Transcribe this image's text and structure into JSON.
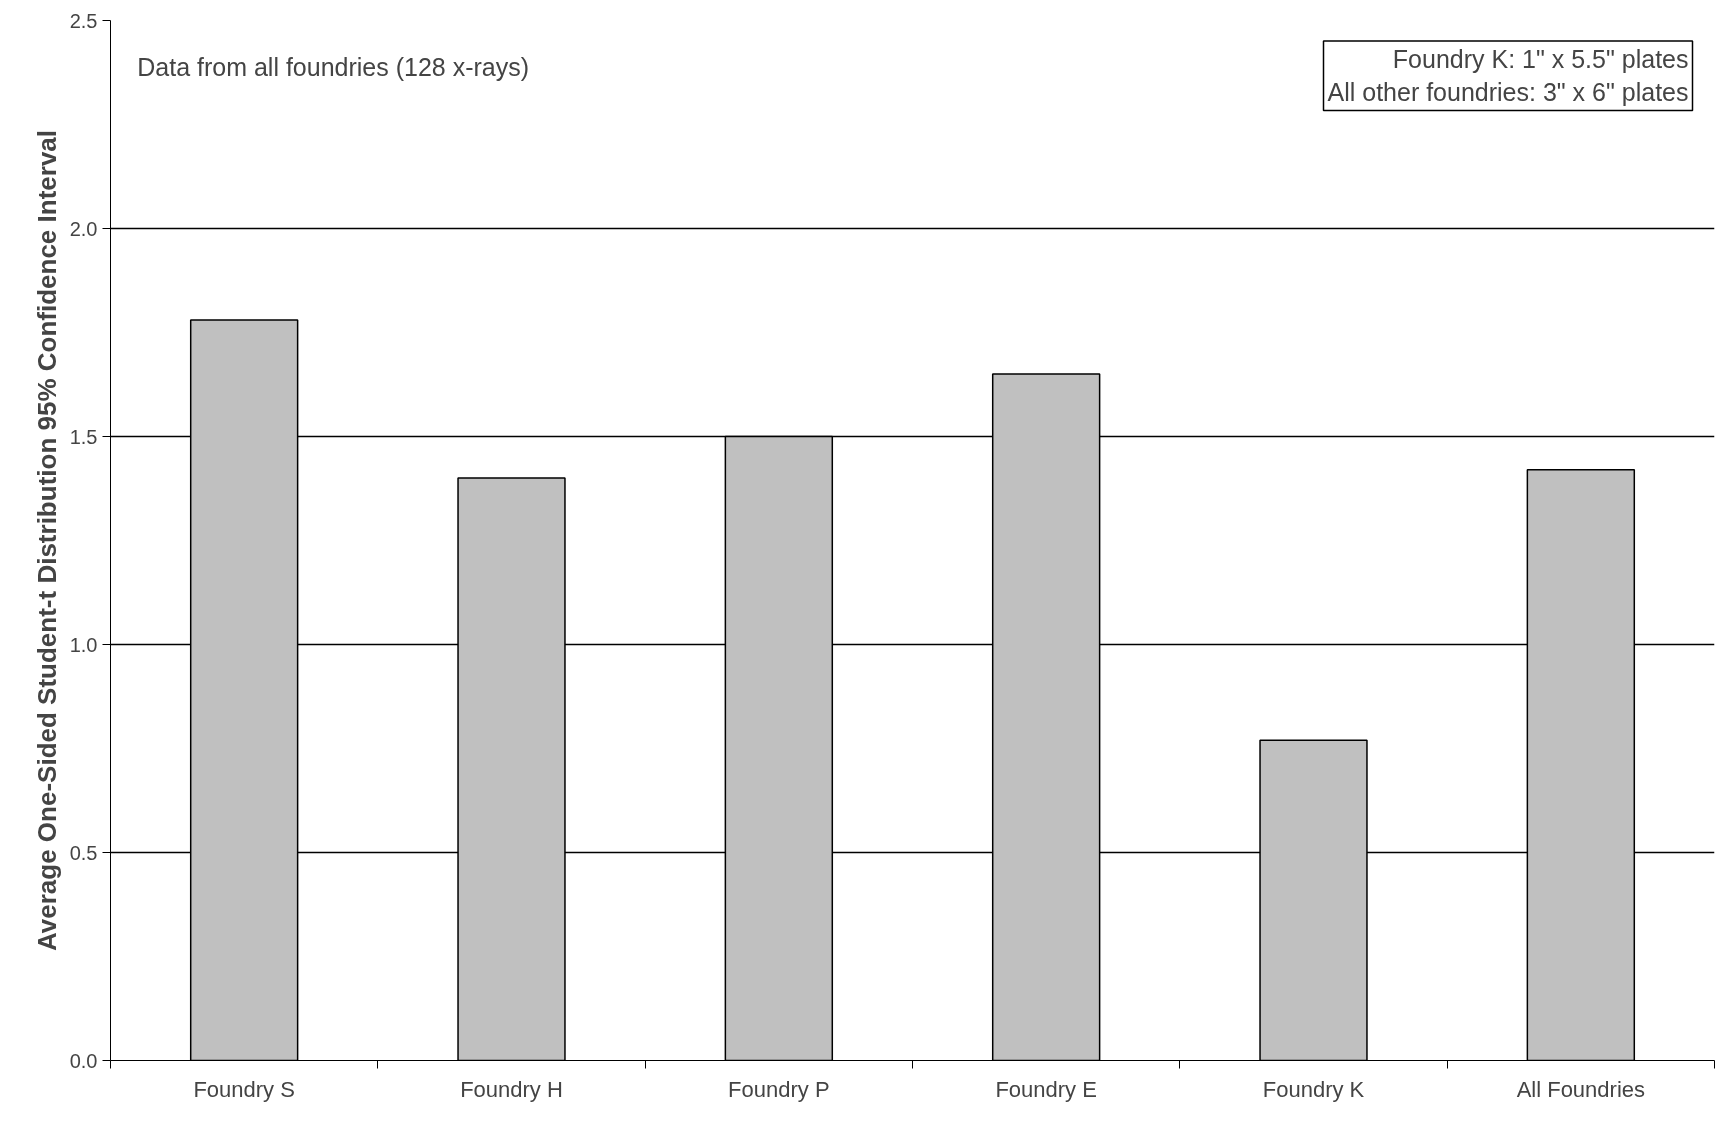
{
  "chart_data": {
    "type": "bar",
    "ylabel": "Average One-Sided Student-t Distribution 95% Confidence Interval",
    "categories": [
      "Foundry S",
      "Foundry H",
      "Foundry P",
      "Foundry E",
      "Foundry K",
      "All Foundries"
    ],
    "values": [
      1.78,
      1.4,
      1.5,
      1.65,
      0.77,
      1.42
    ],
    "color": "#c0c0c0",
    "ylim": [
      0,
      2.5
    ],
    "yticks": [
      {
        "value": 0,
        "label": "0.0"
      },
      {
        "value": 0.5,
        "label": "0.5"
      },
      {
        "value": 1,
        "label": "1.0"
      },
      {
        "value": 1.5,
        "label": "1.5"
      },
      {
        "value": 2,
        "label": "2.0"
      },
      {
        "value": 2.5,
        "label": "2.5"
      }
    ],
    "grid": "y",
    "annotations": [
      "Data from all foundries (128 x-rays)",
      "Foundry K: 1\" x 5.5\" plates\nAll other foundries: 3\" x 6\" plates"
    ]
  }
}
